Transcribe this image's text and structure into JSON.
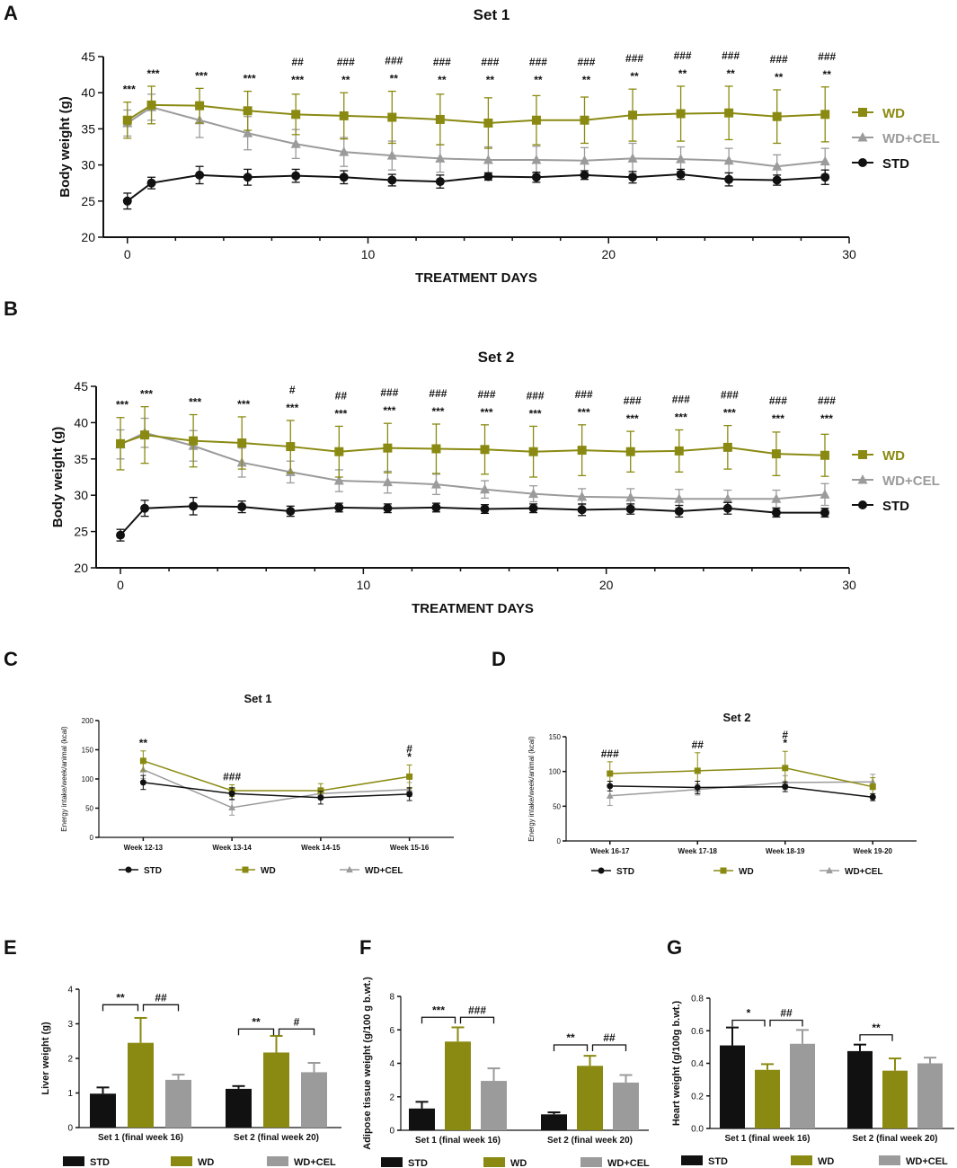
{
  "figure": {
    "panels": {
      "A": "A",
      "B": "B",
      "C": "C",
      "D": "D",
      "E": "E",
      "F": "F",
      "G": "G"
    }
  },
  "colors": {
    "STD": "#111111",
    "WD": "#8a8a12",
    "WD+CEL": "#9b9b9b"
  },
  "chart_data": [
    {
      "id": "A",
      "type": "line",
      "title": "Set 1",
      "xlabel": "TREATMENT DAYS",
      "ylabel": "Body weight (g)",
      "xlim": [
        -1,
        30
      ],
      "ylim": [
        20,
        45
      ],
      "xticks": [
        0,
        10,
        20,
        30
      ],
      "yticks": [
        20,
        25,
        30,
        35,
        40,
        45
      ],
      "x": [
        0,
        1,
        3,
        5,
        7,
        9,
        11,
        13,
        15,
        17,
        19,
        21,
        23,
        25,
        27,
        29
      ],
      "series": [
        {
          "name": "WD",
          "marker": "square",
          "values": [
            36.2,
            38.3,
            38.2,
            37.5,
            37.0,
            36.8,
            36.6,
            36.3,
            35.8,
            36.2,
            36.2,
            36.9,
            37.1,
            37.2,
            36.7,
            37.0
          ],
          "errors": [
            2.5,
            2.6,
            2.4,
            2.7,
            2.8,
            3.2,
            3.6,
            3.5,
            3.5,
            3.4,
            3.2,
            3.6,
            3.8,
            3.7,
            3.7,
            3.8
          ]
        },
        {
          "name": "WD+CEL",
          "marker": "triangle",
          "values": [
            35.8,
            38.0,
            36.2,
            34.4,
            32.9,
            31.8,
            31.3,
            30.9,
            30.7,
            30.7,
            30.6,
            30.9,
            30.8,
            30.6,
            29.8,
            30.5
          ],
          "errors": [
            1.8,
            1.8,
            2.4,
            2.3,
            2.0,
            2.0,
            2.0,
            1.9,
            1.8,
            1.9,
            1.8,
            2.1,
            1.7,
            1.7,
            1.6,
            1.8
          ]
        },
        {
          "name": "STD",
          "marker": "circle",
          "values": [
            25.0,
            27.5,
            28.6,
            28.3,
            28.5,
            28.3,
            27.9,
            27.7,
            28.4,
            28.3,
            28.6,
            28.3,
            28.7,
            28.0,
            27.9,
            28.3
          ],
          "errors": [
            1.1,
            0.8,
            1.2,
            1.1,
            0.9,
            0.9,
            0.8,
            0.9,
            0.5,
            0.7,
            0.6,
            0.8,
            0.7,
            0.9,
            0.7,
            1.0
          ]
        }
      ],
      "annotations_top": [
        "",
        "",
        "",
        "",
        "##",
        "###",
        "###",
        "###",
        "###",
        "###",
        "###",
        "###",
        "###",
        "###",
        "###",
        "###"
      ],
      "annotations_bottom": [
        "***",
        "***",
        "***",
        "***",
        "***",
        "**",
        "**",
        "**",
        "**",
        "**",
        "**",
        "**",
        "**",
        "**",
        "**",
        "**"
      ]
    },
    {
      "id": "B",
      "type": "line",
      "title": "Set 2",
      "xlabel": "TREATMENT DAYS",
      "ylabel": "Body weight (g)",
      "xlim": [
        -1,
        30
      ],
      "ylim": [
        20,
        45
      ],
      "xticks": [
        0,
        10,
        20,
        30
      ],
      "yticks": [
        20,
        25,
        30,
        35,
        40,
        45
      ],
      "x": [
        0,
        1,
        3,
        5,
        7,
        9,
        11,
        13,
        15,
        17,
        19,
        21,
        23,
        25,
        27,
        29
      ],
      "series": [
        {
          "name": "WD",
          "marker": "square",
          "values": [
            37.1,
            38.3,
            37.5,
            37.2,
            36.7,
            36.0,
            36.5,
            36.4,
            36.3,
            36.0,
            36.2,
            36.0,
            36.1,
            36.6,
            35.7,
            35.5
          ],
          "errors": [
            3.6,
            3.9,
            3.6,
            3.6,
            3.6,
            3.5,
            3.4,
            3.4,
            3.4,
            3.5,
            3.5,
            2.8,
            2.9,
            3.0,
            3.0,
            2.9
          ]
        },
        {
          "name": "WD+CEL",
          "marker": "triangle",
          "values": [
            37.0,
            38.6,
            36.8,
            34.5,
            33.2,
            32.0,
            31.8,
            31.5,
            30.8,
            30.2,
            29.8,
            29.7,
            29.5,
            29.5,
            29.5,
            30.1
          ],
          "errors": [
            2.0,
            2.0,
            2.1,
            2.0,
            1.5,
            1.5,
            1.5,
            1.4,
            1.2,
            1.1,
            1.1,
            1.2,
            1.3,
            1.2,
            1.2,
            1.5
          ]
        },
        {
          "name": "STD",
          "marker": "circle",
          "values": [
            24.5,
            28.2,
            28.5,
            28.4,
            27.8,
            28.3,
            28.2,
            28.3,
            28.1,
            28.2,
            28.0,
            28.1,
            27.8,
            28.2,
            27.6,
            27.6
          ],
          "errors": [
            0.8,
            1.1,
            1.2,
            0.8,
            0.7,
            0.6,
            0.6,
            0.6,
            0.6,
            0.6,
            0.8,
            0.7,
            0.8,
            0.8,
            0.6,
            0.6
          ]
        }
      ],
      "annotations_top": [
        "",
        "",
        "",
        "",
        "#",
        "##",
        "###",
        "###",
        "###",
        "###",
        "###",
        "###",
        "###",
        "###",
        "###",
        "###"
      ],
      "annotations_bottom": [
        "***",
        "***",
        "***",
        "***",
        "***",
        "***",
        "***",
        "***",
        "***",
        "***",
        "***",
        "***",
        "***",
        "***",
        "***",
        "***"
      ]
    },
    {
      "id": "C",
      "type": "line",
      "title": "Set 1",
      "xlabel": "",
      "ylabel": "Energy intake/week/animal (kcal)",
      "ylim": [
        0,
        200
      ],
      "yticks": [
        0,
        50,
        100,
        150,
        200
      ],
      "categories": [
        "Week 12-13",
        "Week 13-14",
        "Week 14-15",
        "Week 15-16"
      ],
      "series": [
        {
          "name": "STD",
          "marker": "circle",
          "values": [
            94,
            75,
            68,
            74
          ],
          "errors": [
            12,
            10,
            11,
            11
          ]
        },
        {
          "name": "WD",
          "marker": "square",
          "values": [
            131,
            80,
            80,
            104
          ],
          "errors": [
            17,
            10,
            12,
            20
          ]
        },
        {
          "name": "WD+CEL",
          "marker": "triangle",
          "values": [
            116,
            51,
            75,
            82
          ],
          "errors": [
            15,
            13,
            10,
            12
          ]
        }
      ],
      "annotations_top": [
        "",
        "",
        "",
        "#"
      ],
      "annotations_bottom": [
        "**",
        "###",
        "",
        "*"
      ]
    },
    {
      "id": "D",
      "type": "line",
      "title": "Set 2",
      "xlabel": "",
      "ylabel": "Energy intake/week/animal (kcal)",
      "ylim": [
        0,
        150
      ],
      "yticks": [
        0,
        50,
        100,
        150
      ],
      "categories": [
        "Week 16-17",
        "Week 17-18",
        "Week 18-19",
        "Week 19-20"
      ],
      "series": [
        {
          "name": "STD",
          "marker": "circle",
          "values": [
            79,
            77,
            78,
            63
          ],
          "errors": [
            7,
            9,
            7,
            5
          ]
        },
        {
          "name": "WD",
          "marker": "square",
          "values": [
            97,
            101,
            105,
            78
          ],
          "errors": [
            17,
            26,
            24,
            13
          ]
        },
        {
          "name": "WD+CEL",
          "marker": "triangle",
          "values": [
            65,
            74,
            84,
            85
          ],
          "errors": [
            14,
            8,
            10,
            11
          ]
        }
      ],
      "annotations_top": [
        "",
        "",
        "#",
        ""
      ],
      "annotations_bottom": [
        "###",
        "##",
        "*",
        ""
      ]
    },
    {
      "id": "E",
      "type": "bar",
      "title": "",
      "ylabel": "Liver weight (g)",
      "ylim": [
        0,
        4
      ],
      "yticks": [
        0,
        1,
        2,
        3,
        4
      ],
      "groups": [
        "Set 1 (final week 16)",
        "Set 2 (final week 20)"
      ],
      "series": [
        {
          "name": "STD",
          "values": [
            0.98,
            1.12
          ],
          "errors": [
            0.18,
            0.08
          ]
        },
        {
          "name": "WD",
          "values": [
            2.45,
            2.17
          ],
          "errors": [
            0.72,
            0.48
          ]
        },
        {
          "name": "WD+CEL",
          "values": [
            1.38,
            1.6
          ],
          "errors": [
            0.15,
            0.27
          ]
        }
      ],
      "brackets": [
        {
          "group": 0,
          "from": 0,
          "to": 1,
          "y": 3.55,
          "label": "**"
        },
        {
          "group": 0,
          "from": 1,
          "to": 2,
          "y": 3.55,
          "label": "##"
        },
        {
          "group": 1,
          "from": 0,
          "to": 1,
          "y": 2.85,
          "label": "**"
        },
        {
          "group": 1,
          "from": 1,
          "to": 2,
          "y": 2.85,
          "label": "#"
        }
      ]
    },
    {
      "id": "F",
      "type": "bar",
      "title": "",
      "ylabel": "Adipose tissue weight (g/100 g b.wt.)",
      "ylim": [
        0,
        8
      ],
      "yticks": [
        0,
        2,
        4,
        6,
        8
      ],
      "groups": [
        "Set 1 (final week 16)",
        "Set 2 (final week 20)"
      ],
      "series": [
        {
          "name": "STD",
          "values": [
            1.3,
            0.95
          ],
          "errors": [
            0.4,
            0.12
          ]
        },
        {
          "name": "WD",
          "values": [
            5.3,
            3.85
          ],
          "errors": [
            0.85,
            0.6
          ]
        },
        {
          "name": "WD+CEL",
          "values": [
            2.95,
            2.85
          ],
          "errors": [
            0.75,
            0.45
          ]
        }
      ],
      "brackets": [
        {
          "group": 0,
          "from": 0,
          "to": 1,
          "y": 6.75,
          "label": "***"
        },
        {
          "group": 0,
          "from": 1,
          "to": 2,
          "y": 6.75,
          "label": "###"
        },
        {
          "group": 1,
          "from": 0,
          "to": 1,
          "y": 5.1,
          "label": "**"
        },
        {
          "group": 1,
          "from": 1,
          "to": 2,
          "y": 5.1,
          "label": "##"
        }
      ]
    },
    {
      "id": "G",
      "type": "bar",
      "title": "",
      "ylabel": "Heart weight (g/100g b.wt.)",
      "ylim": [
        0,
        0.8
      ],
      "yticks": [
        "0.0",
        "0.2",
        "0.4",
        "0.6",
        "0.8"
      ],
      "groups": [
        "Set 1 (final week 16)",
        "Set 2 (final week 20)"
      ],
      "series": [
        {
          "name": "STD",
          "values": [
            0.51,
            0.475
          ],
          "errors": [
            0.11,
            0.04
          ]
        },
        {
          "name": "WD",
          "values": [
            0.36,
            0.355
          ],
          "errors": [
            0.035,
            0.075
          ]
        },
        {
          "name": "WD+CEL",
          "values": [
            0.52,
            0.4
          ],
          "errors": [
            0.085,
            0.035
          ]
        }
      ],
      "brackets": [
        {
          "group": 0,
          "from": 0,
          "to": 1,
          "y": 0.665,
          "label": "*"
        },
        {
          "group": 0,
          "from": 1,
          "to": 2,
          "y": 0.665,
          "label": "##"
        },
        {
          "group": 1,
          "from": 0,
          "to": 1,
          "y": 0.575,
          "label": "**"
        }
      ]
    }
  ]
}
